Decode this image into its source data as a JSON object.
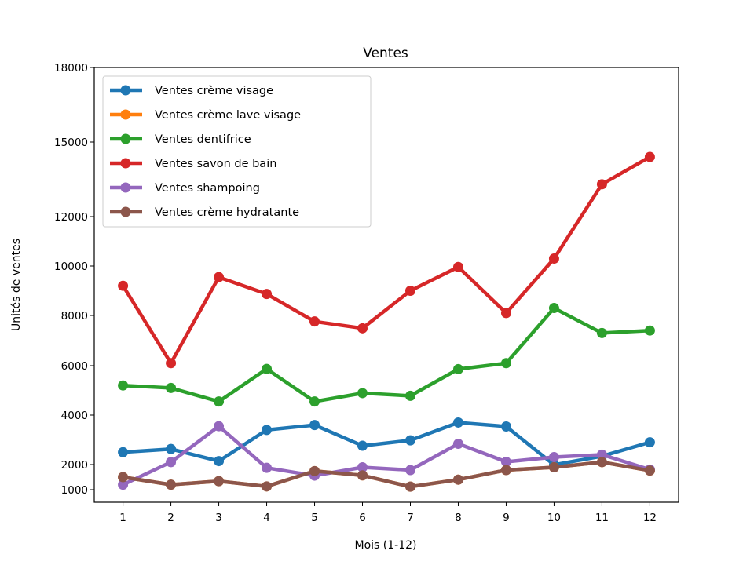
{
  "chart_data": {
    "type": "line",
    "title": "Ventes",
    "xlabel": "Mois (1-12)",
    "ylabel": "Unités de ventes",
    "x": [
      1,
      2,
      3,
      4,
      5,
      6,
      7,
      8,
      9,
      10,
      11,
      12
    ],
    "xlim": [
      0.4,
      12.6
    ],
    "ylim": [
      500,
      18000
    ],
    "yticks": [
      1000,
      2000,
      4000,
      6000,
      8000,
      10000,
      12000,
      15000,
      18000
    ],
    "yscale": "nonlinear",
    "grid": false,
    "legend_position": "upper left",
    "series": [
      {
        "name": "Ventes crème visage",
        "color": "#1f77b4",
        "values": [
          2500,
          2630,
          2140,
          3400,
          3600,
          2760,
          2980,
          3700,
          3540,
          1990,
          2340,
          2900
        ]
      },
      {
        "name": "Ventes crème lave visage",
        "color": "#ff7f0e",
        "values": [
          1500,
          1200,
          1340,
          1130,
          1740,
          1570,
          1120,
          1400,
          1780,
          1890,
          2100,
          1760
        ]
      },
      {
        "name": "Ventes dentifrice",
        "color": "#2ca02c",
        "values": [
          5200,
          5100,
          4550,
          5870,
          4550,
          4890,
          4780,
          5860,
          6100,
          8300,
          7300,
          7400
        ]
      },
      {
        "name": "Ventes savon de bain",
        "color": "#d62728",
        "values": [
          9200,
          6100,
          9550,
          8870,
          7760,
          7490,
          9000,
          9960,
          8100,
          10300,
          13300,
          14400
        ]
      },
      {
        "name": "Ventes shampoing",
        "color": "#9467bd",
        "values": [
          1200,
          2100,
          3550,
          1870,
          1560,
          1890,
          1780,
          2840,
          2110,
          2300,
          2400,
          1800
        ]
      },
      {
        "name": "Ventes crème hydratante",
        "color": "#8c564b",
        "values": [
          1500,
          1200,
          1340,
          1130,
          1740,
          1570,
          1120,
          1400,
          1780,
          1890,
          2100,
          1760
        ]
      }
    ]
  }
}
